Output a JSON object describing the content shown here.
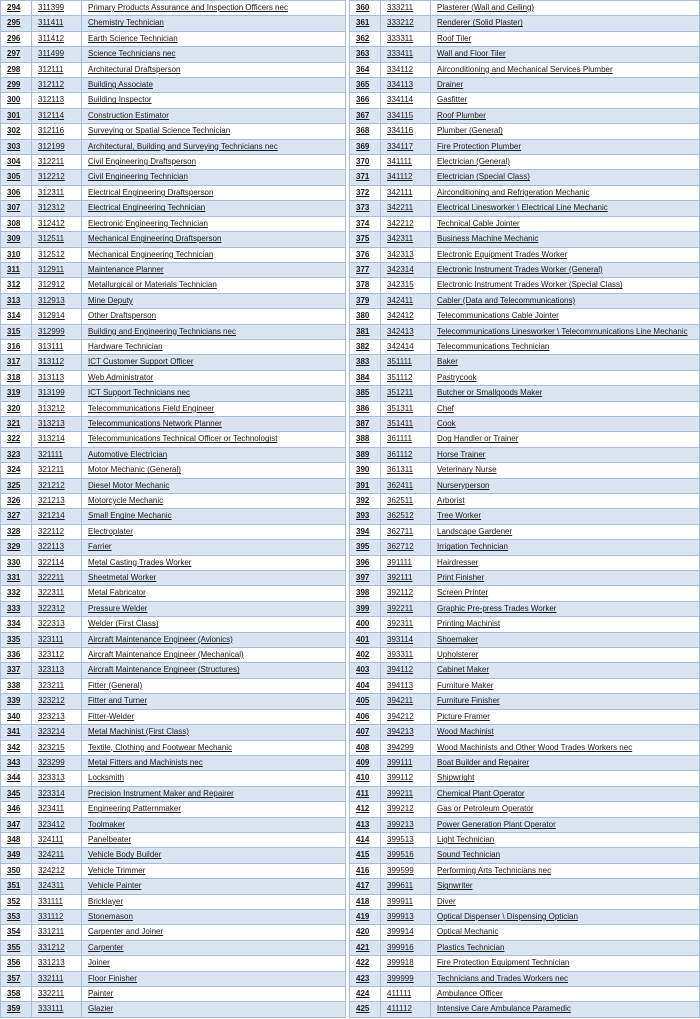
{
  "style": {
    "row_shade_color": "#dbe5f1",
    "row_plain_color": "#ffffff",
    "border_color": "#a6bcd9",
    "text_color": "#1a1a1a"
  },
  "tables": [
    {
      "name": "occupation-table-left",
      "columns": [
        "row-number",
        "code",
        "occupation"
      ],
      "rows": [
        [
          "294",
          "311399",
          "Primary Products Assurance and Inspection Officers nec"
        ],
        [
          "295",
          "311411",
          "Chemistry Technician"
        ],
        [
          "296",
          "311412",
          "Earth Science Technician"
        ],
        [
          "297",
          "311499",
          "Science Technicians nec"
        ],
        [
          "298",
          "312111",
          "Architectural Draftsperson"
        ],
        [
          "299",
          "312112",
          "Building Associate"
        ],
        [
          "300",
          "312113",
          "Building Inspector"
        ],
        [
          "301",
          "312114",
          "Construction Estimator"
        ],
        [
          "302",
          "312116",
          "Surveying or Spatial Science Technician"
        ],
        [
          "303",
          "312199",
          "Architectural, Building and Surveying Technicians nec"
        ],
        [
          "304",
          "312211",
          "Civil Engineering Draftsperson"
        ],
        [
          "305",
          "312212",
          "Civil Engineering Technician"
        ],
        [
          "306",
          "312311",
          "Electrical Engineering Draftsperson"
        ],
        [
          "307",
          "312312",
          "Electrical Engineering Technician"
        ],
        [
          "308",
          "312412",
          "Electronic Engineering Technician"
        ],
        [
          "309",
          "312511",
          "Mechanical Engineering Draftsperson"
        ],
        [
          "310",
          "312512",
          "Mechanical Engineering Technician"
        ],
        [
          "311",
          "312911",
          "Maintenance Planner"
        ],
        [
          "312",
          "312912",
          "Metallurgical or Materials Technician"
        ],
        [
          "313",
          "312913",
          "Mine Deputy"
        ],
        [
          "314",
          "312914",
          "Other Draftsperson"
        ],
        [
          "315",
          "312999",
          "Building and Engineering Technicians nec"
        ],
        [
          "316",
          "313111",
          "Hardware Technician"
        ],
        [
          "317",
          "313112",
          "ICT Customer Support Officer"
        ],
        [
          "318",
          "313113",
          "Web Administrator"
        ],
        [
          "319",
          "313199",
          "ICT Support Technicians nec"
        ],
        [
          "320",
          "313212",
          "Telecommunications Field Engineer"
        ],
        [
          "321",
          "313213",
          "Telecommunications Network Planner"
        ],
        [
          "322",
          "313214",
          "Telecommunications Technical Officer or Technologist"
        ],
        [
          "323",
          "321111",
          "Automotive Electrician"
        ],
        [
          "324",
          "321211",
          "Motor Mechanic (General)"
        ],
        [
          "325",
          "321212",
          "Diesel Motor Mechanic"
        ],
        [
          "326",
          "321213",
          "Motorcycle Mechanic"
        ],
        [
          "327",
          "321214",
          "Small Engine Mechanic"
        ],
        [
          "328",
          "322112",
          "Electroplater"
        ],
        [
          "329",
          "322113",
          "Farrier"
        ],
        [
          "330",
          "322114",
          "Metal Casting Trades Worker"
        ],
        [
          "331",
          "322211",
          "Sheetmetal Worker"
        ],
        [
          "332",
          "322311",
          "Metal Fabricator"
        ],
        [
          "333",
          "322312",
          "Pressure Welder"
        ],
        [
          "334",
          "322313",
          "Welder (First Class)"
        ],
        [
          "335",
          "323111",
          "Aircraft Maintenance Engineer (Avionics)"
        ],
        [
          "336",
          "323112",
          "Aircraft Maintenance Engineer (Mechanical)"
        ],
        [
          "337",
          "323113",
          "Aircraft Maintenance Engineer (Structures)"
        ],
        [
          "338",
          "323211",
          "Fitter (General)"
        ],
        [
          "339",
          "323212",
          "Fitter and Turner"
        ],
        [
          "340",
          "323213",
          "Fitter-Welder"
        ],
        [
          "341",
          "323214",
          "Metal Machinist (First Class)"
        ],
        [
          "342",
          "323215",
          "Textile, Clothing and Footwear Mechanic"
        ],
        [
          "343",
          "323299",
          "Metal Fitters and Machinists nec"
        ],
        [
          "344",
          "323313",
          "Locksmith"
        ],
        [
          "345",
          "323314",
          "Precision Instrument Maker and Repairer"
        ],
        [
          "346",
          "323411",
          "Engineering Patternmaker"
        ],
        [
          "347",
          "323412",
          "Toolmaker"
        ],
        [
          "348",
          "324111",
          "Panelbeater"
        ],
        [
          "349",
          "324211",
          "Vehicle Body Builder"
        ],
        [
          "350",
          "324212",
          "Vehicle Trimmer"
        ],
        [
          "351",
          "324311",
          "Vehicle Painter"
        ],
        [
          "352",
          "331111",
          "Bricklayer"
        ],
        [
          "353",
          "331112",
          "Stonemason"
        ],
        [
          "354",
          "331211",
          "Carpenter and Joiner"
        ],
        [
          "355",
          "331212",
          "Carpenter"
        ],
        [
          "356",
          "331213",
          "Joiner"
        ],
        [
          "357",
          "332111",
          "Floor Finisher"
        ],
        [
          "358",
          "332211",
          "Painter"
        ],
        [
          "359",
          "333111",
          "Glazier"
        ]
      ]
    },
    {
      "name": "occupation-table-right",
      "columns": [
        "row-number",
        "code",
        "occupation"
      ],
      "rows": [
        [
          "360",
          "333211",
          "Plasterer (Wall and Ceiling)"
        ],
        [
          "361",
          "333212",
          "Renderer (Solid Plaster)"
        ],
        [
          "362",
          "333311",
          "Roof Tiler"
        ],
        [
          "363",
          "333411",
          "Wall and Floor Tiler"
        ],
        [
          "364",
          "334112",
          "Airconditioning and Mechanical Services Plumber"
        ],
        [
          "365",
          "334113",
          "Drainer"
        ],
        [
          "366",
          "334114",
          "Gasfitter"
        ],
        [
          "367",
          "334115",
          "Roof Plumber"
        ],
        [
          "368",
          "334116",
          "Plumber (General)"
        ],
        [
          "369",
          "334117",
          "Fire Protection Plumber"
        ],
        [
          "370",
          "341111",
          "Electrician (General)"
        ],
        [
          "371",
          "341112",
          "Electrician (Special Class)"
        ],
        [
          "372",
          "342111",
          "Airconditioning and Refrigeration Mechanic"
        ],
        [
          "373",
          "342211",
          "Electrical Linesworker \\ Electrical Line Mechanic"
        ],
        [
          "374",
          "342212",
          "Technical Cable Jointer"
        ],
        [
          "375",
          "342311",
          "Business Machine Mechanic"
        ],
        [
          "376",
          "342313",
          "Electronic Equipment Trades Worker"
        ],
        [
          "377",
          "342314",
          "Electronic Instrument Trades Worker (General)"
        ],
        [
          "378",
          "342315",
          "Electronic Instrument Trades Worker (Special Class)"
        ],
        [
          "379",
          "342411",
          "Cabler (Data and Telecommunications)"
        ],
        [
          "380",
          "342412",
          "Telecommunications Cable Jointer"
        ],
        [
          "381",
          "342413",
          "Telecommunications Linesworker \\ Telecommunications Line Mechanic"
        ],
        [
          "382",
          "342414",
          "Telecommunications Technician"
        ],
        [
          "383",
          "351111",
          "Baker"
        ],
        [
          "384",
          "351112",
          "Pastrycook"
        ],
        [
          "385",
          "351211",
          "Butcher or Smallgoods Maker"
        ],
        [
          "386",
          "351311",
          "Chef"
        ],
        [
          "387",
          "351411",
          "Cook"
        ],
        [
          "388",
          "361111",
          "Dog Handler or Trainer"
        ],
        [
          "389",
          "361112",
          "Horse Trainer"
        ],
        [
          "390",
          "361311",
          "Veterinary Nurse"
        ],
        [
          "391",
          "362411",
          "Nurseryperson"
        ],
        [
          "392",
          "362511",
          "Arborist"
        ],
        [
          "393",
          "362512",
          "Tree Worker"
        ],
        [
          "394",
          "362711",
          "Landscape Gardener"
        ],
        [
          "395",
          "362712",
          "Irrigation Technician"
        ],
        [
          "396",
          "391111",
          "Hairdresser"
        ],
        [
          "397",
          "392111",
          "Print Finisher"
        ],
        [
          "398",
          "392112",
          "Screen Printer"
        ],
        [
          "399",
          "392211",
          "Graphic Pre-press Trades Worker"
        ],
        [
          "400",
          "392311",
          "Printing Machinist"
        ],
        [
          "401",
          "393114",
          "Shoemaker"
        ],
        [
          "402",
          "393311",
          "Upholsterer"
        ],
        [
          "403",
          "394112",
          "Cabinet Maker"
        ],
        [
          "404",
          "394113",
          "Furniture Maker"
        ],
        [
          "405",
          "394211",
          "Furniture Finisher"
        ],
        [
          "406",
          "394212",
          "Picture Framer"
        ],
        [
          "407",
          "394213",
          "Wood Machinist"
        ],
        [
          "408",
          "394299",
          "Wood Machinists and Other Wood Trades Workers nec"
        ],
        [
          "409",
          "399111",
          "Boat Builder and Repairer"
        ],
        [
          "410",
          "399112",
          "Shipwright"
        ],
        [
          "411",
          "399211",
          "Chemical Plant Operator"
        ],
        [
          "412",
          "399212",
          "Gas or Petroleum Operator"
        ],
        [
          "413",
          "399213",
          "Power Generation Plant Operator"
        ],
        [
          "414",
          "399513",
          "Light Technician"
        ],
        [
          "415",
          "399516",
          "Sound Technician"
        ],
        [
          "416",
          "399599",
          "Performing Arts Technicians nec"
        ],
        [
          "417",
          "399611",
          "Signwriter"
        ],
        [
          "418",
          "399911",
          "Diver"
        ],
        [
          "419",
          "399913",
          "Optical Dispenser \\ Dispensing Optician"
        ],
        [
          "420",
          "399914",
          "Optical Mechanic"
        ],
        [
          "421",
          "399916",
          "Plastics Technician"
        ],
        [
          "422",
          "399918",
          "Fire Protection Equipment Technician"
        ],
        [
          "423",
          "399999",
          "Technicians and Trades Workers nec"
        ],
        [
          "424",
          "411111",
          "Ambulance Officer"
        ],
        [
          "425",
          "411112",
          "Intensive Care Ambulance Paramedic"
        ]
      ]
    }
  ]
}
